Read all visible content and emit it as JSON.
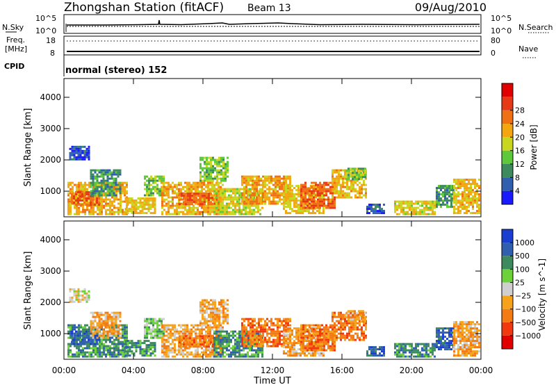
{
  "header": {
    "station": "Zhongshan Station (fitACF)",
    "beam": "Beam 13",
    "date": "09/Aug/2010"
  },
  "noise_panel": {
    "left_label": "N.Sky",
    "right_label": "N.Search",
    "left_ticks": [
      "10^5",
      "10^0"
    ],
    "right_ticks": [
      "10^5",
      "10^0"
    ]
  },
  "freq_panel": {
    "left_label_line1": "Freq.",
    "left_label_line2": "[MHz]",
    "right_label": "Nave",
    "left_ticks": [
      "18",
      "8"
    ],
    "right_ticks": [
      "80",
      "0"
    ]
  },
  "cpid": {
    "label": "CPID",
    "value": "normal (stereo) 152"
  },
  "colors": {
    "power": [
      "#1a1aff",
      "#2f5fae",
      "#3c8a5e",
      "#5cc83a",
      "#c9d61f",
      "#f2a60f",
      "#f07015",
      "#e63a16",
      "#e00000"
    ],
    "velocity": [
      "#e00000",
      "#f2380f",
      "#f47a14",
      "#f6a21a",
      "#cfcfcf",
      "#6cd23a",
      "#3c8a5e",
      "#2f5fae",
      "#1a3fd0"
    ]
  },
  "chart_data": [
    {
      "type": "heatmap",
      "title": "Power",
      "ylabel": "Slant Range [km]",
      "xlabel": "",
      "x_ticks": [
        "00:00",
        "04:00",
        "08:00",
        "12:00",
        "16:00",
        "20:00",
        "00:00"
      ],
      "x_range_hours": [
        0,
        24
      ],
      "y_ticks": [
        1000,
        2000,
        3000,
        4000
      ],
      "ylim": [
        180,
        4600
      ],
      "colorbar_label": "Power [dB]",
      "colorbar_ticks": [
        4,
        8,
        12,
        16,
        20,
        24,
        28
      ],
      "colorbar_range": [
        0,
        32
      ],
      "grid": false,
      "regions": [
        {
          "t0": 0.3,
          "t1": 1.4,
          "r0": 2050,
          "r1": 2450,
          "v": 5
        },
        {
          "t0": 0.2,
          "t1": 3.6,
          "r0": 300,
          "r1": 1300,
          "v": 22
        },
        {
          "t0": 0.4,
          "t1": 2.0,
          "r0": 600,
          "r1": 1000,
          "v": 27
        },
        {
          "t0": 1.5,
          "t1": 3.2,
          "r0": 900,
          "r1": 1700,
          "v": 10
        },
        {
          "t0": 3.5,
          "t1": 5.2,
          "r0": 300,
          "r1": 800,
          "v": 20
        },
        {
          "t0": 4.6,
          "t1": 5.8,
          "r0": 900,
          "r1": 1500,
          "v": 14
        },
        {
          "t0": 5.6,
          "t1": 9.2,
          "r0": 300,
          "r1": 1300,
          "v": 22
        },
        {
          "t0": 6.6,
          "t1": 9.0,
          "r0": 600,
          "r1": 950,
          "v": 28
        },
        {
          "t0": 7.8,
          "t1": 9.4,
          "r0": 1350,
          "r1": 2100,
          "v": 15
        },
        {
          "t0": 8.6,
          "t1": 11.4,
          "r0": 300,
          "r1": 1100,
          "v": 18
        },
        {
          "t0": 10.2,
          "t1": 13.0,
          "r0": 600,
          "r1": 1500,
          "v": 23
        },
        {
          "t0": 12.6,
          "t1": 15.0,
          "r0": 300,
          "r1": 1200,
          "v": 20
        },
        {
          "t0": 13.6,
          "t1": 15.6,
          "r0": 500,
          "r1": 1300,
          "v": 27
        },
        {
          "t0": 15.4,
          "t1": 17.4,
          "r0": 800,
          "r1": 1700,
          "v": 21
        },
        {
          "t0": 16.2,
          "t1": 17.4,
          "r0": 1400,
          "r1": 1750,
          "v": 14
        },
        {
          "t0": 17.4,
          "t1": 18.4,
          "r0": 300,
          "r1": 600,
          "v": 6
        },
        {
          "t0": 19.0,
          "t1": 21.4,
          "r0": 300,
          "r1": 700,
          "v": 19
        },
        {
          "t0": 21.4,
          "t1": 22.4,
          "r0": 500,
          "r1": 1200,
          "v": 11
        },
        {
          "t0": 22.4,
          "t1": 23.9,
          "r0": 300,
          "r1": 1400,
          "v": 21
        }
      ]
    },
    {
      "type": "heatmap",
      "title": "Velocity",
      "ylabel": "Slant Range [km]",
      "xlabel": "Time UT",
      "x_ticks": [
        "00:00",
        "04:00",
        "08:00",
        "12:00",
        "16:00",
        "20:00",
        "00:00"
      ],
      "x_range_hours": [
        0,
        24
      ],
      "y_ticks": [
        1000,
        2000,
        3000,
        4000
      ],
      "ylim": [
        180,
        4600
      ],
      "colorbar_label": "Velocity [m s^-1]",
      "colorbar_ticks": [
        "1000",
        "500",
        "100",
        "25",
        "−25",
        "−100",
        "−500",
        "−1000"
      ],
      "grid": false,
      "regions": [
        {
          "t0": 0.3,
          "t1": 1.4,
          "r0": 2050,
          "r1": 2450,
          "c": 4
        },
        {
          "t0": 0.2,
          "t1": 3.6,
          "r0": 300,
          "r1": 1300,
          "c": 6
        },
        {
          "t0": 0.4,
          "t1": 2.0,
          "r0": 700,
          "r1": 1100,
          "c": 7
        },
        {
          "t0": 1.5,
          "t1": 3.2,
          "r0": 900,
          "r1": 1700,
          "c": 3
        },
        {
          "t0": 3.5,
          "t1": 5.2,
          "r0": 300,
          "r1": 800,
          "c": 6
        },
        {
          "t0": 4.6,
          "t1": 5.8,
          "r0": 900,
          "r1": 1500,
          "c": 5
        },
        {
          "t0": 5.6,
          "t1": 9.2,
          "r0": 300,
          "r1": 1300,
          "c": 3
        },
        {
          "t0": 6.6,
          "t1": 9.0,
          "r0": 600,
          "r1": 950,
          "c": 2
        },
        {
          "t0": 7.8,
          "t1": 9.4,
          "r0": 1350,
          "r1": 2100,
          "c": 3
        },
        {
          "t0": 8.6,
          "t1": 11.4,
          "r0": 300,
          "r1": 1100,
          "c": 6
        },
        {
          "t0": 10.2,
          "t1": 13.0,
          "r0": 600,
          "r1": 1500,
          "c": 2
        },
        {
          "t0": 12.6,
          "t1": 15.0,
          "r0": 300,
          "r1": 1200,
          "c": 3
        },
        {
          "t0": 13.6,
          "t1": 15.6,
          "r0": 500,
          "r1": 1300,
          "c": 2
        },
        {
          "t0": 15.4,
          "t1": 17.4,
          "r0": 800,
          "r1": 1700,
          "c": 2
        },
        {
          "t0": 16.2,
          "t1": 17.4,
          "r0": 1400,
          "r1": 1750,
          "c": 3
        },
        {
          "t0": 17.4,
          "t1": 18.4,
          "r0": 300,
          "r1": 600,
          "c": 7
        },
        {
          "t0": 19.0,
          "t1": 21.4,
          "r0": 300,
          "r1": 700,
          "c": 6
        },
        {
          "t0": 21.4,
          "t1": 22.4,
          "r0": 500,
          "r1": 1200,
          "c": 7
        },
        {
          "t0": 22.4,
          "t1": 23.9,
          "r0": 300,
          "r1": 1400,
          "c": 3
        }
      ]
    }
  ]
}
